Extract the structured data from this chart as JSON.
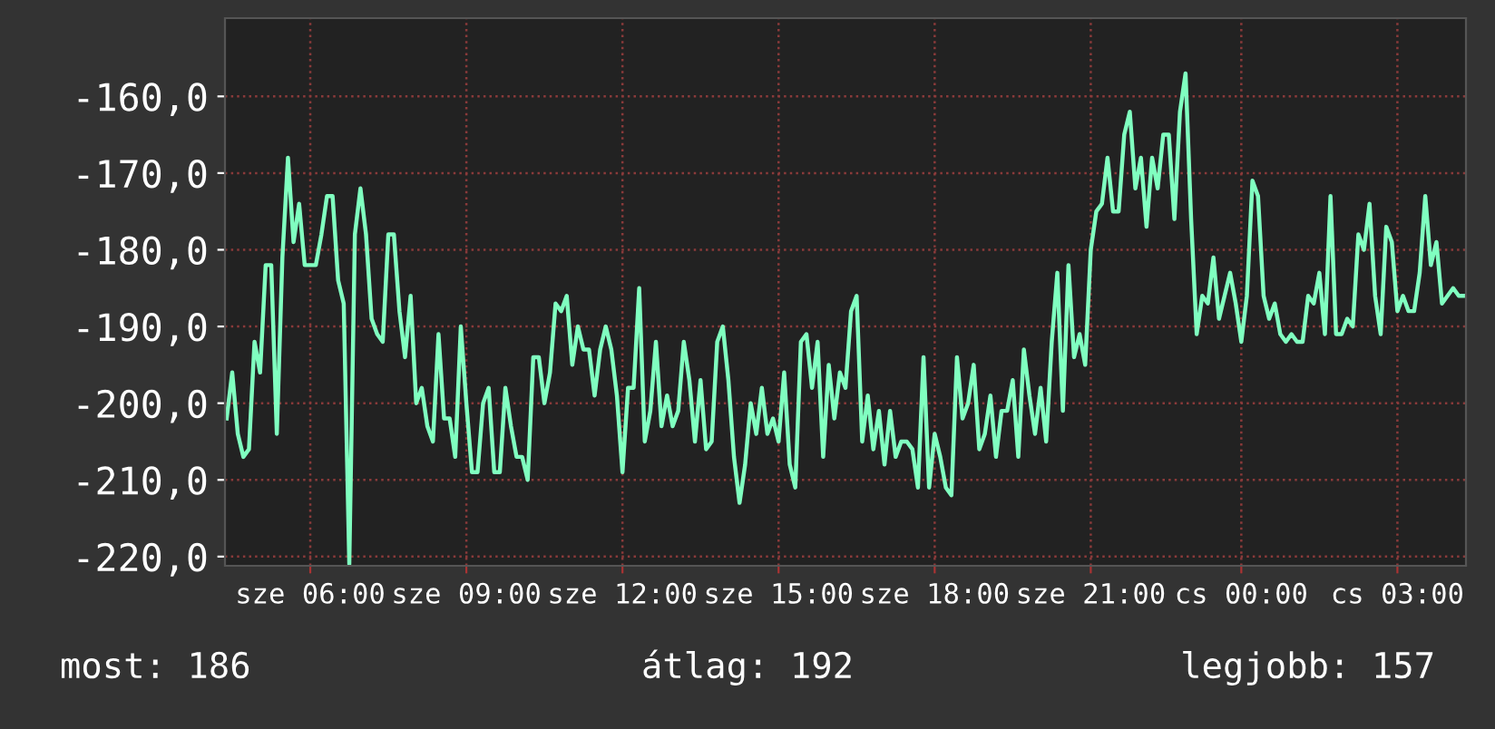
{
  "chart_data": {
    "type": "line",
    "categories": [
      null,
      null,
      null,
      null,
      null,
      null,
      null,
      null,
      null,
      null,
      null,
      null,
      null,
      null,
      null,
      "sze 06:00",
      null,
      null,
      null,
      null,
      null,
      null,
      null,
      null,
      null,
      null,
      null,
      null,
      null,
      null,
      null,
      null,
      null,
      null,
      null,
      null,
      null,
      null,
      null,
      null,
      null,
      null,
      null,
      "sze 09:00",
      null,
      null,
      null,
      null,
      null,
      null,
      null,
      null,
      null,
      null,
      null,
      null,
      null,
      null,
      null,
      null,
      null,
      null,
      null,
      null,
      null,
      null,
      null,
      null,
      null,
      null,
      null,
      "sze 12:00",
      null,
      null,
      null,
      null,
      null,
      null,
      null,
      null,
      null,
      null,
      null,
      null,
      null,
      null,
      null,
      null,
      null,
      null,
      null,
      null,
      null,
      null,
      null,
      null,
      null,
      null,
      null,
      "sze 15:00",
      null,
      null,
      null,
      null,
      null,
      null,
      null,
      null,
      null,
      null,
      null,
      null,
      null,
      null,
      null,
      null,
      null,
      null,
      null,
      null,
      null,
      null,
      null,
      null,
      null,
      null,
      null,
      "sze 18:00",
      null,
      null,
      null,
      null,
      null,
      null,
      null,
      null,
      null,
      null,
      null,
      null,
      null,
      null,
      null,
      null,
      null,
      null,
      null,
      null,
      null,
      null,
      null,
      null,
      null,
      null,
      null,
      "sze 21:00",
      null,
      null,
      null,
      null,
      null,
      null,
      null,
      null,
      null,
      null,
      null,
      null,
      null,
      null,
      null,
      null,
      null,
      null,
      null,
      null,
      null,
      null,
      null,
      null,
      null,
      null,
      "cs 00:00",
      null,
      null,
      null,
      null,
      null,
      null,
      null,
      null,
      null,
      null,
      null,
      null,
      null,
      null,
      null,
      null,
      null,
      null,
      null,
      null,
      null,
      null,
      null,
      null,
      null,
      null,
      null,
      "cs 03:00",
      null,
      null,
      null,
      null,
      null,
      null,
      null,
      null,
      null,
      null,
      null,
      null
    ],
    "series": [
      {
        "color": "#80ffc0",
        "values": [
          -202,
          -196,
          -204,
          -207,
          -206,
          -192,
          -196,
          -182,
          -182,
          -204,
          -181,
          -168,
          -179,
          -174,
          -182,
          -182,
          -182,
          -178,
          -173,
          -173,
          -184,
          -187,
          -221,
          -178,
          -172,
          -178,
          -189,
          -191,
          -192,
          -178,
          -178,
          -188,
          -194,
          -186,
          -200,
          -198,
          -203,
          -205,
          -191,
          -202,
          -202,
          -207,
          -190,
          -200,
          -209,
          -209,
          -200,
          -198,
          -209,
          -209,
          -198,
          -203,
          -207,
          -207,
          -210,
          -194,
          -194,
          -200,
          -196,
          -187,
          -188,
          -186,
          -195,
          -190,
          -193,
          -193,
          -199,
          -193,
          -190,
          -193,
          -199,
          -209,
          -198,
          -198,
          -185,
          -205,
          -201,
          -192,
          -203,
          -199,
          -203,
          -201,
          -192,
          -197,
          -205,
          -197,
          -206,
          -205,
          -192,
          -190,
          -197,
          -207,
          -213,
          -208,
          -200,
          -204,
          -198,
          -204,
          -202,
          -205,
          -196,
          -208,
          -211,
          -192,
          -191,
          -198,
          -192,
          -207,
          -195,
          -202,
          -196,
          -198,
          -188,
          -186,
          -205,
          -199,
          -206,
          -201,
          -208,
          -201,
          -207,
          -205,
          -205,
          -206,
          -211,
          -194,
          -211,
          -204,
          -207,
          -211,
          -212,
          -194,
          -202,
          -200,
          -195,
          -206,
          -204,
          -199,
          -207,
          -201,
          -201,
          -197,
          -207,
          -193,
          -199,
          -204,
          -198,
          -205,
          -192,
          -183,
          -201,
          -182,
          -194,
          -191,
          -195,
          -180,
          -175,
          -174,
          -168,
          -175,
          -175,
          -165,
          -162,
          -172,
          -168,
          -177,
          -168,
          -172,
          -165,
          -165,
          -176,
          -162,
          -157,
          -176,
          -191,
          -186,
          -187,
          -181,
          -189,
          -186,
          -183,
          -187,
          -192,
          -186,
          -171,
          -173,
          -186,
          -189,
          -187,
          -191,
          -192,
          -191,
          -192,
          -192,
          -186,
          -187,
          -183,
          -191,
          -173,
          -191,
          -191,
          -189,
          -190,
          -178,
          -180,
          -174,
          -186,
          -191,
          -177,
          -179,
          -188,
          -186,
          -188,
          -188,
          -183,
          -173,
          -182,
          -179,
          -187,
          -186,
          -185,
          -186,
          -186
        ]
      }
    ],
    "ylim": [
      -221.2,
      -149.8
    ],
    "yticks": [
      {
        "value": -220,
        "label": "-220,0"
      },
      {
        "value": -210,
        "label": "-210,0"
      },
      {
        "value": -200,
        "label": "-200,0"
      },
      {
        "value": -190,
        "label": "-190,0"
      },
      {
        "value": -180,
        "label": "-180,0"
      },
      {
        "value": -170,
        "label": "-170,0"
      },
      {
        "value": -160,
        "label": "-160,0"
      }
    ],
    "grid": true,
    "annotations": [
      "most: 186",
      "átlag: 192",
      "legjobb: 157"
    ]
  }
}
